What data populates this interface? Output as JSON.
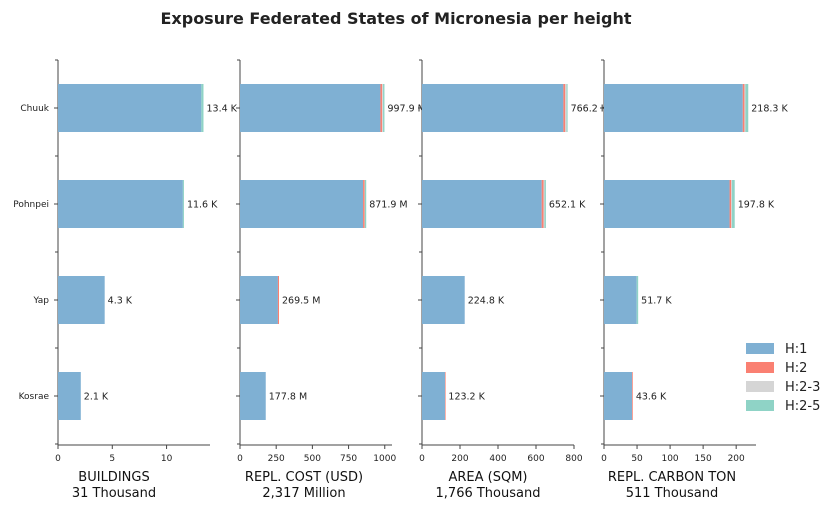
{
  "chart_data": {
    "type": "bar",
    "orientation": "horizontal",
    "stacked": true,
    "title": "Exposure Federated States of Micronesia per height",
    "categories": [
      "Chuuk",
      "Pohnpei",
      "Yap",
      "Kosrae"
    ],
    "legend": {
      "placement": "right",
      "entries": [
        {
          "name": "H:1",
          "color": "#7fb0d3"
        },
        {
          "name": "H:2",
          "color": "#fa8072"
        },
        {
          "name": "H:2-3",
          "color": "#d5d5d5"
        },
        {
          "name": "H:2-5",
          "color": "#8fd3c6"
        }
      ]
    },
    "panels": [
      {
        "xlabel": "BUILDINGS",
        "total": "31 Thousand",
        "xlim": [
          0,
          14
        ],
        "ticks": [
          0,
          5,
          10
        ],
        "series": [
          {
            "name": "H:1",
            "values": [
              13.2,
              11.5,
              4.3,
              2.1
            ]
          },
          {
            "name": "H:2",
            "values": [
              0.0,
              0.0,
              0.0,
              0.0
            ]
          },
          {
            "name": "H:2-3",
            "values": [
              0.0,
              0.0,
              0.0,
              0.0
            ]
          },
          {
            "name": "H:2-5",
            "values": [
              0.2,
              0.1,
              0.0,
              0.0
            ]
          }
        ],
        "labels": [
          "13.4 K",
          "11.6 K",
          "4.3 K",
          "2.1 K"
        ]
      },
      {
        "xlabel": "REPL. COST (USD)",
        "total": "2,317 Million",
        "xlim": [
          0,
          1050
        ],
        "ticks": [
          0,
          250,
          500,
          750,
          1000
        ],
        "series": [
          {
            "name": "H:1",
            "values": [
              970,
              850,
              262,
              177.8
            ]
          },
          {
            "name": "H:2",
            "values": [
              12,
              10,
              7.5,
              0
            ]
          },
          {
            "name": "H:2-3",
            "values": [
              6,
              3,
              0,
              0
            ]
          },
          {
            "name": "H:2-5",
            "values": [
              9.9,
              8.9,
              0,
              0
            ]
          }
        ],
        "labels": [
          "997.9 M",
          "871.9 M",
          "269.5 M",
          "177.8 M"
        ]
      },
      {
        "xlabel": "AREA (SQM)",
        "total": "1,766 Thousand",
        "xlim": [
          0,
          800
        ],
        "ticks": [
          0,
          200,
          400,
          600,
          800
        ],
        "series": [
          {
            "name": "H:1",
            "values": [
              744,
              630,
              224.8,
              121
            ]
          },
          {
            "name": "H:2",
            "values": [
              10,
              10,
              0,
              2.2
            ]
          },
          {
            "name": "H:2-3",
            "values": [
              7,
              5,
              0,
              0
            ]
          },
          {
            "name": "H:2-5",
            "values": [
              5.2,
              7.1,
              0,
              0
            ]
          }
        ],
        "labels": [
          "766.2 K",
          "652.1 K",
          "224.8 K",
          "123.2 K"
        ]
      },
      {
        "xlabel": "REPL. CARBON TON",
        "total": "511 Thousand",
        "xlim": [
          0,
          230
        ],
        "ticks": [
          0,
          50,
          100,
          150,
          200
        ],
        "series": [
          {
            "name": "H:1",
            "values": [
              210,
              190,
              49.5,
              42.5
            ]
          },
          {
            "name": "H:2",
            "values": [
              2.5,
              2.5,
              0,
              1.1
            ]
          },
          {
            "name": "H:2-3",
            "values": [
              1.5,
              1,
              0,
              0
            ]
          },
          {
            "name": "H:2-5",
            "values": [
              4.3,
              4.3,
              2.2,
              0
            ]
          }
        ],
        "labels": [
          "218.3 K",
          "197.8 K",
          "51.7 K",
          "43.6 K"
        ]
      }
    ]
  }
}
